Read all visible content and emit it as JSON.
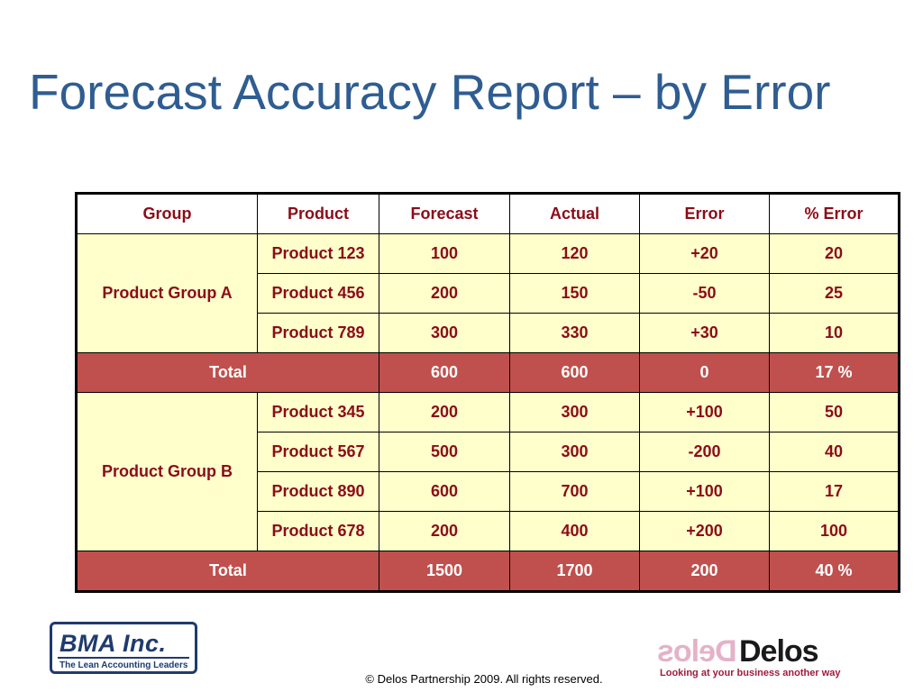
{
  "title": "Forecast Accuracy Report – by Error",
  "table": {
    "headers": [
      "Group",
      "Product",
      "Forecast",
      "Actual",
      "Error",
      "% Error"
    ],
    "groups": [
      {
        "name": "Product Group A",
        "rows": [
          [
            "Product 123",
            "100",
            "120",
            "+20",
            "20"
          ],
          [
            "Product 456",
            "200",
            "150",
            "-50",
            "25"
          ],
          [
            "Product 789",
            "300",
            "330",
            "+30",
            "10"
          ]
        ],
        "total": {
          "label": "Total",
          "forecast": "600",
          "actual": "600",
          "error": "0",
          "pct_error": "17 %"
        }
      },
      {
        "name": "Product Group B",
        "rows": [
          [
            "Product 345",
            "200",
            "300",
            "+100",
            "50"
          ],
          [
            "Product 567",
            "500",
            "300",
            "-200",
            "40"
          ],
          [
            "Product 890",
            "600",
            "700",
            "+100",
            "17"
          ],
          [
            "Product 678",
            "200",
            "400",
            "+200",
            "100"
          ]
        ],
        "total": {
          "label": "Total",
          "forecast": "1500",
          "actual": "1700",
          "error": "200",
          "pct_error": "40 %"
        }
      }
    ]
  },
  "logos": {
    "bma": {
      "name": "BMA Inc.",
      "tagline": "The Lean Accounting Leaders"
    },
    "delos": {
      "name": "Delos",
      "tagline": "Looking at your business another way"
    }
  },
  "footer": "© Delos Partnership 2009.  All rights reserved.",
  "colors": {
    "title": "#2f5d91",
    "body_cell": "#ffffcc",
    "total_row": "#c0504d",
    "text_dark_red": "#8b0c18"
  }
}
